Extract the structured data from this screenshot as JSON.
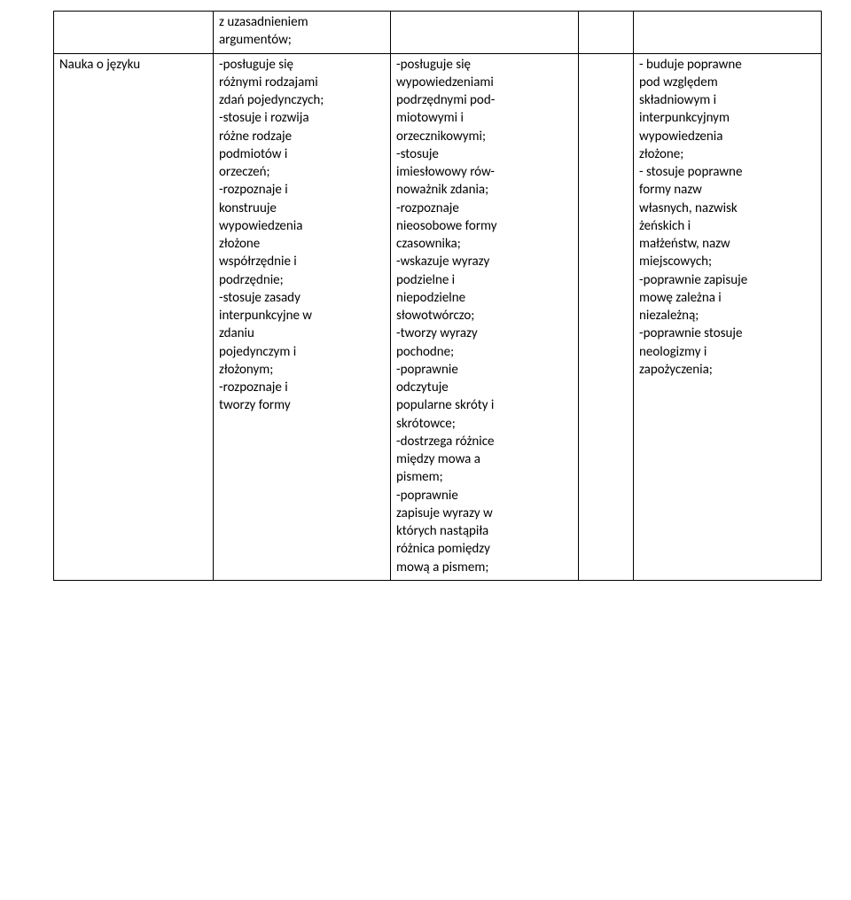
{
  "table": {
    "row0": {
      "col0": "",
      "col1": "z uzasadnieniem\nargumentów;",
      "col2": "",
      "col3": "",
      "col4": ""
    },
    "row1": {
      "col0": "Nauka o języku",
      "col1": "-posługuje się\nróżnymi rodzajami\nzdań pojedynczych;\n-stosuje i rozwija\nróżne rodzaje\npodmiotów i\norzeczeń;\n-rozpoznaje i\nkonstruuje\nwypowiedzenia\nzłożone\nwspółrzędnie i\npodrzędnie;\n-stosuje zasady\ninterpunkcyjne w\nzdaniu\npojedynczym i\nzłożonym;\n-rozpoznaje i\ntworzy formy",
      "col2": "-posługuje się\nwypowiedzeniami\npodrzędnymi pod-\nmiotowymi i\norzecznikowymi;\n-stosuje\nimiesłowowy rów-\nnoważnik zdania;\n-rozpoznaje\nnieosobowe formy\nczasownika;\n-wskazuje wyrazy\npodzielne i\nniepodzielne\nsłowotwórczo;\n-tworzy wyrazy\npochodne;\n-poprawnie\nodczytuje\npopularne skróty i\nskrótowce;\n-dostrzega różnice\nmiędzy mowa a\npismem;\n-poprawnie\nzapisuje wyrazy w\nktórych nastąpiła\nróżnica pomiędzy\nmową a pismem;",
      "col3": "",
      "col4": "- buduje poprawne\npod względem\nskładniowym i\ninterpunkcyjnym\nwypowiedzenia\nzłożone;\n- stosuje poprawne\nformy nazw\nwłasnych, nazwisk\nżeńskich i\nmałżeństw, nazw\nmiejscowych;\n-poprawnie zapisuje\nmowę zależna i\nniezależną;\n-poprawnie stosuje\nneologizmy i\nzapożyczenia;"
    }
  }
}
